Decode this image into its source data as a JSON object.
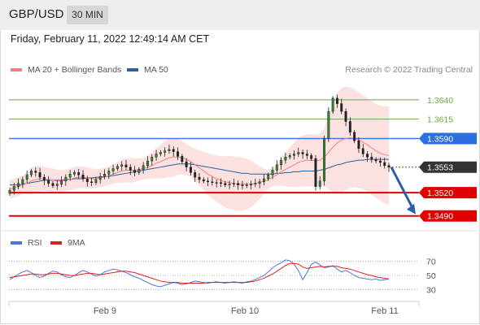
{
  "header": {
    "pair": "GBP/USD",
    "timeframe": "30 MIN"
  },
  "datetime": "Friday, February 11, 2022 12:49:14 AM CET",
  "credit": "Research © 2022 Trading Central",
  "legend": {
    "ma20": {
      "label": "MA 20 + Bollinger Bands",
      "color": "#f08080"
    },
    "ma50": {
      "label": "MA 50",
      "color": "#2f5f9f"
    },
    "rsi": {
      "label": "RSI",
      "color": "#4a78d8"
    },
    "ma9": {
      "label": "9MA",
      "color": "#e02020"
    }
  },
  "chart_data": [
    {
      "type": "candlestick",
      "ylim": [
        1.3475,
        1.3665
      ],
      "levels": [
        {
          "label": "1.3640",
          "value": 1.364,
          "kind": "resistance",
          "color": "#6aa84f"
        },
        {
          "label": "1.3615",
          "value": 1.3615,
          "kind": "resistance",
          "color": "#6aa84f"
        },
        {
          "label": "1.3590",
          "value": 1.359,
          "kind": "pivot",
          "color": "#3d7be8"
        },
        {
          "label": "1.3553",
          "value": 1.3553,
          "kind": "last-price",
          "color": "#333333"
        },
        {
          "label": "1.3520",
          "value": 1.352,
          "kind": "support",
          "color": "#e00000"
        },
        {
          "label": "1.3490",
          "value": 1.349,
          "kind": "support",
          "color": "#e00000"
        }
      ],
      "x_ticks": [
        "Feb 9",
        "Feb 10",
        "Feb 11"
      ],
      "forecast": {
        "from": 1.3553,
        "to": 1.349,
        "direction": "down"
      },
      "close": [
        1.3523,
        1.3528,
        1.3532,
        1.3537,
        1.3543,
        1.3548,
        1.3546,
        1.354,
        1.3536,
        1.3532,
        1.3529,
        1.3531,
        1.3535,
        1.354,
        1.3544,
        1.3546,
        1.3543,
        1.3538,
        1.3534,
        1.3533,
        1.3537,
        1.3541,
        1.3544,
        1.3548,
        1.3551,
        1.3554,
        1.3556,
        1.3553,
        1.3549,
        1.3546,
        1.355,
        1.3555,
        1.3561,
        1.3566,
        1.357,
        1.3572,
        1.3574,
        1.3576,
        1.3573,
        1.3567,
        1.356,
        1.3553,
        1.3546,
        1.354,
        1.3537,
        1.3535,
        1.3534,
        1.3533,
        1.3533,
        1.3532,
        1.353,
        1.3531,
        1.3532,
        1.353,
        1.3529,
        1.353,
        1.3531,
        1.3532,
        1.3534,
        1.3538,
        1.3543,
        1.3549,
        1.3556,
        1.3562,
        1.3566,
        1.3568,
        1.357,
        1.3572,
        1.357,
        1.3568,
        1.3564,
        1.3528,
        1.3535,
        1.359,
        1.3625,
        1.3642,
        1.3635,
        1.3625,
        1.3612,
        1.3598,
        1.3587,
        1.3577,
        1.357,
        1.3566,
        1.3563,
        1.3561,
        1.3559,
        1.3555,
        1.3553
      ],
      "ma20": [
        1.3525,
        1.3526,
        1.3528,
        1.353,
        1.3532,
        1.3535,
        1.3537,
        1.3538,
        1.3538,
        1.3537,
        1.3536,
        1.3535,
        1.3535,
        1.3536,
        1.3537,
        1.3539,
        1.354,
        1.354,
        1.3539,
        1.3538,
        1.3538,
        1.3539,
        1.354,
        1.3542,
        1.3544,
        1.3546,
        1.3548,
        1.3549,
        1.3549,
        1.3549,
        1.355,
        1.3551,
        1.3553,
        1.3555,
        1.3558,
        1.356,
        1.3563,
        1.3565,
        1.3566,
        1.3566,
        1.3565,
        1.3563,
        1.356,
        1.3556,
        1.3552,
        1.3548,
        1.3544,
        1.3541,
        1.3538,
        1.3536,
        1.3534,
        1.3533,
        1.3532,
        1.3531,
        1.3531,
        1.3531,
        1.3531,
        1.3532,
        1.3533,
        1.3535,
        1.3537,
        1.354,
        1.3543,
        1.3547,
        1.355,
        1.3553,
        1.3556,
        1.3559,
        1.3561,
        1.3562,
        1.3562,
        1.3561,
        1.3562,
        1.3566,
        1.3572,
        1.3579,
        1.3584,
        1.3588,
        1.359,
        1.3591,
        1.359,
        1.3588,
        1.3585,
        1.3582,
        1.3578,
        1.3574,
        1.3571,
        1.3569,
        1.3568
      ],
      "ma50": [
        1.353,
        1.353,
        1.353,
        1.3531,
        1.3532,
        1.3533,
        1.3534,
        1.3535,
        1.3536,
        1.3536,
        1.3536,
        1.3536,
        1.3536,
        1.3537,
        1.3537,
        1.3538,
        1.3538,
        1.3538,
        1.3539,
        1.3539,
        1.354,
        1.354,
        1.3541,
        1.3541,
        1.3542,
        1.3543,
        1.3544,
        1.3545,
        1.3546,
        1.3547,
        1.3548,
        1.3549,
        1.355,
        1.3551,
        1.3552,
        1.3553,
        1.3554,
        1.3555,
        1.3556,
        1.3557,
        1.3557,
        1.3557,
        1.3557,
        1.3556,
        1.3555,
        1.3554,
        1.3553,
        1.3552,
        1.3551,
        1.355,
        1.3549,
        1.3548,
        1.3547,
        1.3546,
        1.3545,
        1.3545,
        1.3544,
        1.3544,
        1.3544,
        1.3544,
        1.3544,
        1.3544,
        1.3545,
        1.3545,
        1.3546,
        1.3546,
        1.3547,
        1.3547,
        1.3548,
        1.3548,
        1.3548,
        1.3548,
        1.3549,
        1.355,
        1.3552,
        1.3554,
        1.3556,
        1.3557,
        1.3559,
        1.356,
        1.3561,
        1.3562,
        1.3562,
        1.3563,
        1.3563,
        1.3563,
        1.3563,
        1.3563,
        1.3563
      ]
    },
    {
      "type": "line",
      "ylim": [
        20,
        80
      ],
      "y_ticks": [
        70,
        50,
        30
      ],
      "series": [
        {
          "name": "RSI",
          "values": [
            44,
            48,
            52,
            55,
            57,
            54,
            50,
            47,
            49,
            53,
            56,
            55,
            51,
            48,
            47,
            50,
            54,
            57,
            55,
            52,
            49,
            51,
            55,
            57,
            59,
            58,
            56,
            54,
            51,
            48,
            46,
            43,
            40,
            37,
            35,
            34,
            36,
            38,
            40,
            39,
            37,
            38,
            40,
            42,
            41,
            40,
            39,
            40,
            41,
            40,
            39,
            40,
            41,
            40,
            39,
            41,
            42,
            44,
            47,
            50,
            55,
            61,
            65,
            68,
            72,
            71,
            66,
            57,
            44,
            54,
            66,
            69,
            65,
            61,
            62,
            64,
            59,
            55,
            57,
            54,
            50,
            47,
            46,
            45,
            44,
            45,
            43,
            44,
            45
          ]
        },
        {
          "name": "9MA",
          "values": [
            47,
            48,
            49,
            50,
            51,
            52,
            52,
            51,
            51,
            52,
            53,
            53,
            52,
            51,
            50,
            50,
            51,
            52,
            53,
            53,
            52,
            51,
            52,
            53,
            54,
            55,
            56,
            56,
            55,
            54,
            52,
            50,
            48,
            46,
            44,
            42,
            41,
            40,
            40,
            40,
            39,
            39,
            39,
            39,
            39,
            39,
            40,
            40,
            40,
            40,
            40,
            40,
            40,
            40,
            40,
            40,
            41,
            42,
            44,
            46,
            49,
            52,
            56,
            60,
            64,
            67,
            67,
            66,
            62,
            60,
            61,
            62,
            63,
            62,
            63,
            63,
            63,
            61,
            60,
            59,
            57,
            55,
            53,
            51,
            50,
            48,
            47,
            46,
            45
          ]
        }
      ]
    }
  ]
}
